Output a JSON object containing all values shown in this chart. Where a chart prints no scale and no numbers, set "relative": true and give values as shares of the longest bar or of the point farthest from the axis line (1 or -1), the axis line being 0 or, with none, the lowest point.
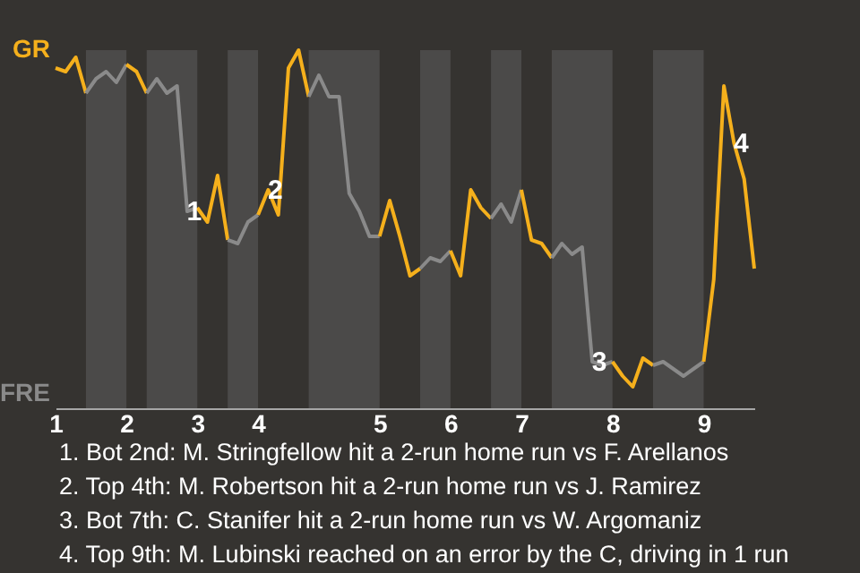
{
  "chart_data": {
    "type": "line",
    "relative": true,
    "categories": [
      "1",
      null,
      null,
      null,
      null,
      null,
      null,
      "2",
      null,
      null,
      null,
      null,
      null,
      null,
      "3",
      null,
      null,
      null,
      null,
      null,
      "4",
      null,
      null,
      null,
      null,
      null,
      null,
      null,
      null,
      null,
      null,
      null,
      "5",
      null,
      null,
      null,
      null,
      null,
      null,
      "6",
      null,
      null,
      null,
      null,
      null,
      null,
      "7",
      null,
      null,
      null,
      null,
      null,
      null,
      null,
      null,
      "8",
      null,
      null,
      null,
      null,
      null,
      null,
      null,
      null,
      "9",
      null,
      null,
      null,
      null,
      null
    ],
    "marker": "none",
    "line_style": "solid",
    "series": [
      {
        "color": "#f5b01c",
        "values": [
          0.95,
          0.94,
          0.98,
          0.88,
          null,
          null,
          null,
          null,
          null,
          null,
          null,
          null,
          null,
          null,
          null,
          null,
          null,
          null,
          null,
          null,
          null,
          null,
          null,
          null,
          null,
          null,
          null,
          null,
          null,
          null,
          null,
          null,
          null,
          null,
          null,
          null,
          null,
          null,
          null,
          null,
          null,
          null,
          null,
          null,
          null,
          null,
          null,
          null,
          null,
          null,
          null,
          null,
          null,
          null,
          null,
          null,
          null,
          null,
          null,
          null,
          null,
          null,
          null,
          null,
          null,
          null,
          null,
          null,
          null,
          null
        ]
      },
      {
        "color": "#8a8a8a",
        "values": [
          null,
          null,
          null,
          0.88,
          0.92,
          0.94,
          0.91,
          0.96,
          null,
          null,
          null,
          null,
          null,
          null,
          null,
          null,
          null,
          null,
          null,
          null,
          null,
          null,
          null,
          null,
          null,
          null,
          null,
          null,
          null,
          null,
          null,
          null,
          null,
          null,
          null,
          null,
          null,
          null,
          null,
          null,
          null,
          null,
          null,
          null,
          null,
          null,
          null,
          null,
          null,
          null,
          null,
          null,
          null,
          null,
          null,
          null,
          null,
          null,
          null,
          null,
          null,
          null,
          null,
          null,
          null,
          null,
          null,
          null,
          null,
          null
        ]
      },
      {
        "color": "#f5b01c",
        "values": [
          null,
          null,
          null,
          null,
          null,
          null,
          null,
          0.96,
          0.94,
          0.88,
          null,
          null,
          null,
          null,
          null,
          null,
          null,
          null,
          null,
          null,
          null,
          null,
          null,
          null,
          null,
          null,
          null,
          null,
          null,
          null,
          null,
          null,
          null,
          null,
          null,
          null,
          null,
          null,
          null,
          null,
          null,
          null,
          null,
          null,
          null,
          null,
          null,
          null,
          null,
          null,
          null,
          null,
          null,
          null,
          null,
          null,
          null,
          null,
          null,
          null,
          null,
          null,
          null,
          null,
          null,
          null,
          null,
          null,
          null,
          null
        ]
      },
      {
        "color": "#8a8a8a",
        "values": [
          null,
          null,
          null,
          null,
          null,
          null,
          null,
          null,
          null,
          0.88,
          0.92,
          0.88,
          0.9,
          0.55,
          0.56,
          null,
          null,
          null,
          null,
          null,
          null,
          null,
          null,
          null,
          null,
          null,
          null,
          null,
          null,
          null,
          null,
          null,
          null,
          null,
          null,
          null,
          null,
          null,
          null,
          null,
          null,
          null,
          null,
          null,
          null,
          null,
          null,
          null,
          null,
          null,
          null,
          null,
          null,
          null,
          null,
          null,
          null,
          null,
          null,
          null,
          null,
          null,
          null,
          null,
          null,
          null,
          null,
          null,
          null,
          null
        ]
      },
      {
        "color": "#f5b01c",
        "values": [
          null,
          null,
          null,
          null,
          null,
          null,
          null,
          null,
          null,
          null,
          null,
          null,
          null,
          null,
          0.56,
          0.52,
          0.65,
          0.47,
          null,
          null,
          null,
          null,
          null,
          null,
          null,
          null,
          null,
          null,
          null,
          null,
          null,
          null,
          null,
          null,
          null,
          null,
          null,
          null,
          null,
          null,
          null,
          null,
          null,
          null,
          null,
          null,
          null,
          null,
          null,
          null,
          null,
          null,
          null,
          null,
          null,
          null,
          null,
          null,
          null,
          null,
          null,
          null,
          null,
          null,
          null,
          null,
          null,
          null,
          null,
          null
        ]
      },
      {
        "color": "#8a8a8a",
        "values": [
          null,
          null,
          null,
          null,
          null,
          null,
          null,
          null,
          null,
          null,
          null,
          null,
          null,
          null,
          null,
          null,
          null,
          0.47,
          0.46,
          0.52,
          0.54,
          null,
          null,
          null,
          null,
          null,
          null,
          null,
          null,
          null,
          null,
          null,
          null,
          null,
          null,
          null,
          null,
          null,
          null,
          null,
          null,
          null,
          null,
          null,
          null,
          null,
          null,
          null,
          null,
          null,
          null,
          null,
          null,
          null,
          null,
          null,
          null,
          null,
          null,
          null,
          null,
          null,
          null,
          null,
          null,
          null,
          null,
          null,
          null,
          null
        ]
      },
      {
        "color": "#f5b01c",
        "values": [
          null,
          null,
          null,
          null,
          null,
          null,
          null,
          null,
          null,
          null,
          null,
          null,
          null,
          null,
          null,
          null,
          null,
          null,
          null,
          null,
          0.54,
          0.61,
          0.54,
          0.95,
          1,
          0.87,
          null,
          null,
          null,
          null,
          null,
          null,
          null,
          null,
          null,
          null,
          null,
          null,
          null,
          null,
          null,
          null,
          null,
          null,
          null,
          null,
          null,
          null,
          null,
          null,
          null,
          null,
          null,
          null,
          null,
          null,
          null,
          null,
          null,
          null,
          null,
          null,
          null,
          null,
          null,
          null,
          null,
          null,
          null,
          null
        ]
      },
      {
        "color": "#8a8a8a",
        "values": [
          null,
          null,
          null,
          null,
          null,
          null,
          null,
          null,
          null,
          null,
          null,
          null,
          null,
          null,
          null,
          null,
          null,
          null,
          null,
          null,
          null,
          null,
          null,
          null,
          null,
          0.87,
          0.93,
          0.87,
          0.87,
          0.6,
          0.55,
          0.48,
          0.48,
          null,
          null,
          null,
          null,
          null,
          null,
          null,
          null,
          null,
          null,
          null,
          null,
          null,
          null,
          null,
          null,
          null,
          null,
          null,
          null,
          null,
          null,
          null,
          null,
          null,
          null,
          null,
          null,
          null,
          null,
          null,
          null,
          null,
          null,
          null,
          null,
          null
        ]
      },
      {
        "color": "#f5b01c",
        "values": [
          null,
          null,
          null,
          null,
          null,
          null,
          null,
          null,
          null,
          null,
          null,
          null,
          null,
          null,
          null,
          null,
          null,
          null,
          null,
          null,
          null,
          null,
          null,
          null,
          null,
          null,
          null,
          null,
          null,
          null,
          null,
          null,
          0.48,
          0.58,
          0.48,
          0.37,
          0.39,
          null,
          null,
          null,
          null,
          null,
          null,
          null,
          null,
          null,
          null,
          null,
          null,
          null,
          null,
          null,
          null,
          null,
          null,
          null,
          null,
          null,
          null,
          null,
          null,
          null,
          null,
          null,
          null,
          null,
          null,
          null,
          null,
          null
        ]
      },
      {
        "color": "#8a8a8a",
        "values": [
          null,
          null,
          null,
          null,
          null,
          null,
          null,
          null,
          null,
          null,
          null,
          null,
          null,
          null,
          null,
          null,
          null,
          null,
          null,
          null,
          null,
          null,
          null,
          null,
          null,
          null,
          null,
          null,
          null,
          null,
          null,
          null,
          null,
          null,
          null,
          null,
          0.39,
          0.42,
          0.41,
          0.44,
          null,
          null,
          null,
          null,
          null,
          null,
          null,
          null,
          null,
          null,
          null,
          null,
          null,
          null,
          null,
          null,
          null,
          null,
          null,
          null,
          null,
          null,
          null,
          null,
          null,
          null,
          null,
          null,
          null,
          null
        ]
      },
      {
        "color": "#f5b01c",
        "values": [
          null,
          null,
          null,
          null,
          null,
          null,
          null,
          null,
          null,
          null,
          null,
          null,
          null,
          null,
          null,
          null,
          null,
          null,
          null,
          null,
          null,
          null,
          null,
          null,
          null,
          null,
          null,
          null,
          null,
          null,
          null,
          null,
          null,
          null,
          null,
          null,
          null,
          null,
          null,
          0.44,
          0.37,
          0.61,
          0.56,
          0.53,
          null,
          null,
          null,
          null,
          null,
          null,
          null,
          null,
          null,
          null,
          null,
          null,
          null,
          null,
          null,
          null,
          null,
          null,
          null,
          null,
          null,
          null,
          null,
          null,
          null,
          null
        ]
      },
      {
        "color": "#8a8a8a",
        "values": [
          null,
          null,
          null,
          null,
          null,
          null,
          null,
          null,
          null,
          null,
          null,
          null,
          null,
          null,
          null,
          null,
          null,
          null,
          null,
          null,
          null,
          null,
          null,
          null,
          null,
          null,
          null,
          null,
          null,
          null,
          null,
          null,
          null,
          null,
          null,
          null,
          null,
          null,
          null,
          null,
          null,
          null,
          null,
          0.53,
          0.57,
          0.52,
          0.61,
          null,
          null,
          null,
          null,
          null,
          null,
          null,
          null,
          null,
          null,
          null,
          null,
          null,
          null,
          null,
          null,
          null,
          null,
          null,
          null,
          null,
          null,
          null
        ]
      },
      {
        "color": "#f5b01c",
        "values": [
          null,
          null,
          null,
          null,
          null,
          null,
          null,
          null,
          null,
          null,
          null,
          null,
          null,
          null,
          null,
          null,
          null,
          null,
          null,
          null,
          null,
          null,
          null,
          null,
          null,
          null,
          null,
          null,
          null,
          null,
          null,
          null,
          null,
          null,
          null,
          null,
          null,
          null,
          null,
          null,
          null,
          null,
          null,
          null,
          null,
          null,
          0.61,
          0.47,
          0.46,
          0.42,
          null,
          null,
          null,
          null,
          null,
          null,
          null,
          null,
          null,
          null,
          null,
          null,
          null,
          null,
          null,
          null,
          null,
          null,
          null,
          null
        ]
      },
      {
        "color": "#8a8a8a",
        "values": [
          null,
          null,
          null,
          null,
          null,
          null,
          null,
          null,
          null,
          null,
          null,
          null,
          null,
          null,
          null,
          null,
          null,
          null,
          null,
          null,
          null,
          null,
          null,
          null,
          null,
          null,
          null,
          null,
          null,
          null,
          null,
          null,
          null,
          null,
          null,
          null,
          null,
          null,
          null,
          null,
          null,
          null,
          null,
          null,
          null,
          null,
          null,
          null,
          null,
          0.42,
          0.46,
          0.43,
          0.45,
          0.13,
          0.12,
          0.13,
          null,
          null,
          null,
          null,
          null,
          null,
          null,
          null,
          null,
          null,
          null,
          null,
          null,
          null
        ]
      },
      {
        "color": "#f5b01c",
        "values": [
          null,
          null,
          null,
          null,
          null,
          null,
          null,
          null,
          null,
          null,
          null,
          null,
          null,
          null,
          null,
          null,
          null,
          null,
          null,
          null,
          null,
          null,
          null,
          null,
          null,
          null,
          null,
          null,
          null,
          null,
          null,
          null,
          null,
          null,
          null,
          null,
          null,
          null,
          null,
          null,
          null,
          null,
          null,
          null,
          null,
          null,
          null,
          null,
          null,
          null,
          null,
          null,
          null,
          null,
          null,
          0.13,
          0.09,
          0.06,
          0.14,
          0.12,
          null,
          null,
          null,
          null,
          null,
          null,
          null,
          null,
          null,
          null
        ]
      },
      {
        "color": "#8a8a8a",
        "values": [
          null,
          null,
          null,
          null,
          null,
          null,
          null,
          null,
          null,
          null,
          null,
          null,
          null,
          null,
          null,
          null,
          null,
          null,
          null,
          null,
          null,
          null,
          null,
          null,
          null,
          null,
          null,
          null,
          null,
          null,
          null,
          null,
          null,
          null,
          null,
          null,
          null,
          null,
          null,
          null,
          null,
          null,
          null,
          null,
          null,
          null,
          null,
          null,
          null,
          null,
          null,
          null,
          null,
          null,
          null,
          null,
          null,
          null,
          null,
          0.12,
          0.13,
          0.11,
          0.09,
          0.11,
          0.13,
          null,
          null,
          null,
          null,
          null
        ]
      },
      {
        "color": "#f5b01c",
        "values": [
          null,
          null,
          null,
          null,
          null,
          null,
          null,
          null,
          null,
          null,
          null,
          null,
          null,
          null,
          null,
          null,
          null,
          null,
          null,
          null,
          null,
          null,
          null,
          null,
          null,
          null,
          null,
          null,
          null,
          null,
          null,
          null,
          null,
          null,
          null,
          null,
          null,
          null,
          null,
          null,
          null,
          null,
          null,
          null,
          null,
          null,
          null,
          null,
          null,
          null,
          null,
          null,
          null,
          null,
          null,
          null,
          null,
          null,
          null,
          null,
          null,
          null,
          null,
          null,
          0.13,
          0.36,
          0.9,
          0.74,
          0.64,
          0.39
        ]
      }
    ],
    "annotations": [
      {
        "text": "1",
        "y": 0.55
      },
      {
        "text": "2",
        "y": 0.61
      },
      {
        "text": "3",
        "y": 0.13
      },
      {
        "text": "4",
        "y": 0.74
      },
      "GR",
      "FRE",
      "1. Bot 2nd: M. Stringfellow hit a 2-run home run vs F. Arellanos",
      "2. Top 4th: M. Robertson hit a 2-run home run vs J. Ramirez",
      "3. Bot 7th: C. Stanifer hit a 2-run home run vs W. Argomaniz",
      "4. Top 9th: M. Lubinski reached on an error by the C, driving in 1 run"
    ]
  }
}
